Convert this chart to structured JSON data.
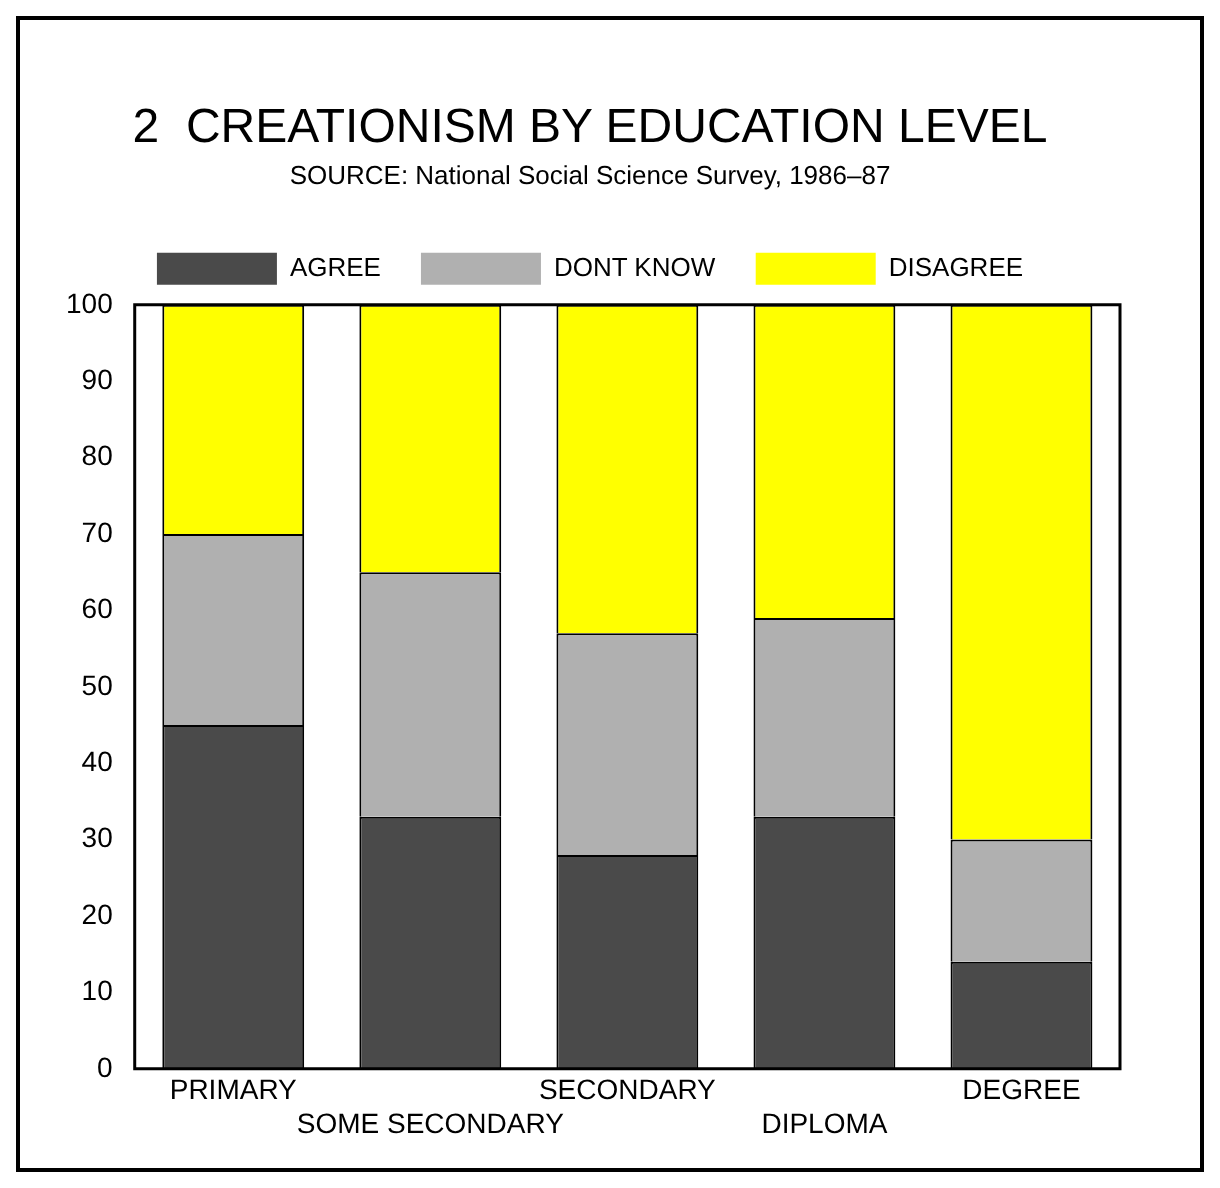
{
  "chart_data": {
    "type": "bar",
    "title": "2  CREATIONISM BY EDUCATION LEVEL",
    "subtitle": "SOURCE: National Social Science Survey, 1986–87",
    "categories": [
      "PRIMARY",
      "SOME SECONDARY",
      "SECONDARY",
      "DIPLOMA",
      "DEGREE"
    ],
    "stacked": true,
    "ylim": [
      0,
      100
    ],
    "yticks": [
      0,
      10,
      20,
      30,
      40,
      50,
      60,
      70,
      80,
      90,
      100
    ],
    "grid": false,
    "legend": "top",
    "series": [
      {
        "name": "AGREE",
        "color": "#4a4a4a",
        "values": [
          45,
          33,
          28,
          33,
          14
        ]
      },
      {
        "name": "DONT KNOW",
        "color": "#b0b0b0",
        "values": [
          25,
          32,
          29,
          26,
          16
        ]
      },
      {
        "name": "DISAGREE",
        "color": "#ffff00",
        "values": [
          30,
          35,
          43,
          41,
          70
        ]
      }
    ]
  }
}
